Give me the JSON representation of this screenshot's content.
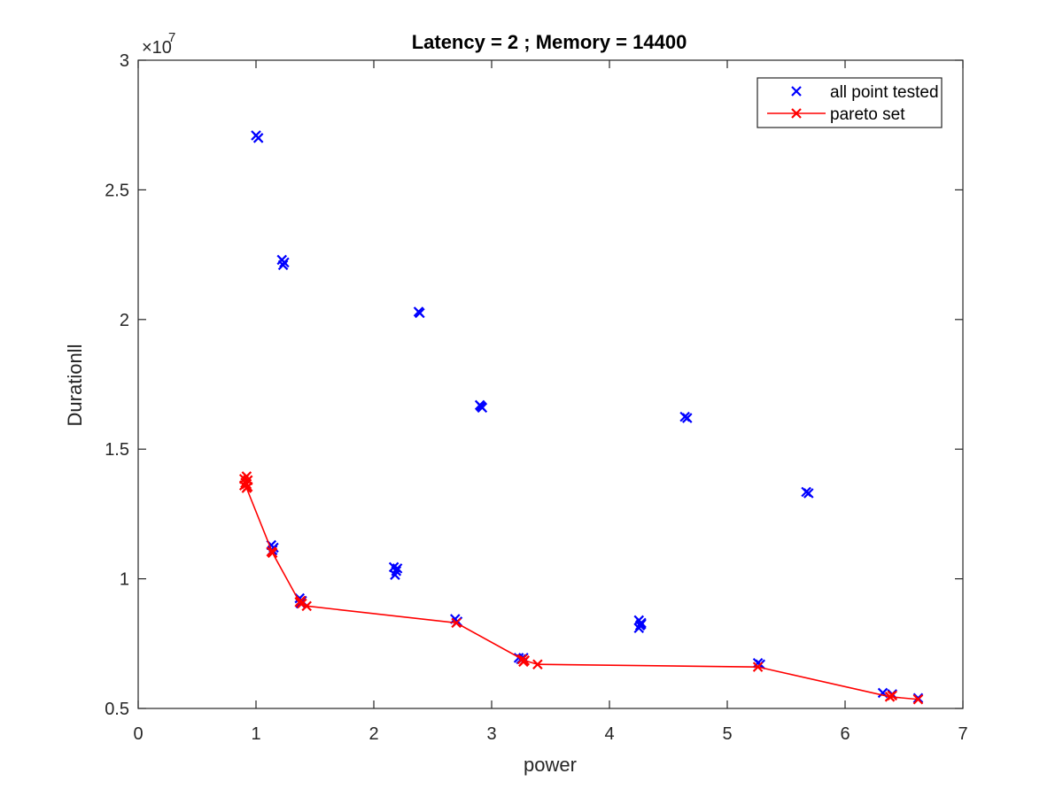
{
  "chart_data": {
    "type": "scatter",
    "title": "Latency = 2 ; Memory = 14400",
    "xlabel": "power",
    "ylabel": "Durationll",
    "xlim": [
      0,
      7
    ],
    "ylim": [
      5000000,
      30000000
    ],
    "x_ticks": [
      0,
      1,
      2,
      3,
      4,
      5,
      6,
      7
    ],
    "x_tick_labels": [
      "0",
      "1",
      "2",
      "3",
      "4",
      "5",
      "6",
      "7"
    ],
    "y_ticks": [
      5000000,
      10000000,
      15000000,
      20000000,
      25000000,
      30000000
    ],
    "y_tick_labels": [
      "0.5",
      "1",
      "1.5",
      "2",
      "2.5",
      "3"
    ],
    "y_exponent_label": "×10",
    "y_exponent_power": "7",
    "grid": false,
    "legend_position": "top-right",
    "series": [
      {
        "name": "all point tested",
        "color": "#0000ff",
        "marker": "x",
        "line": false,
        "points": [
          [
            1.0,
            27100000
          ],
          [
            1.02,
            27000000
          ],
          [
            1.22,
            22300000
          ],
          [
            1.24,
            22200000
          ],
          [
            1.23,
            22100000
          ],
          [
            2.38,
            20300000
          ],
          [
            2.39,
            20250000
          ],
          [
            2.9,
            16700000
          ],
          [
            2.92,
            16600000
          ],
          [
            2.91,
            16650000
          ],
          [
            4.64,
            16250000
          ],
          [
            4.66,
            16200000
          ],
          [
            5.67,
            13350000
          ],
          [
            5.69,
            13300000
          ],
          [
            1.13,
            11300000
          ],
          [
            1.15,
            11200000
          ],
          [
            1.14,
            11100000
          ],
          [
            2.17,
            10450000
          ],
          [
            2.19,
            10300000
          ],
          [
            2.18,
            10150000
          ],
          [
            2.2,
            10400000
          ],
          [
            1.37,
            9250000
          ],
          [
            1.39,
            9150000
          ],
          [
            1.38,
            9050000
          ],
          [
            2.69,
            8450000
          ],
          [
            2.71,
            8350000
          ],
          [
            4.25,
            8400000
          ],
          [
            4.27,
            8300000
          ],
          [
            4.26,
            8200000
          ],
          [
            4.25,
            8100000
          ],
          [
            4.27,
            8250000
          ],
          [
            3.23,
            6950000
          ],
          [
            3.27,
            6950000
          ],
          [
            3.25,
            6900000
          ],
          [
            5.26,
            6750000
          ],
          [
            5.28,
            6700000
          ],
          [
            6.32,
            5600000
          ],
          [
            6.4,
            5550000
          ],
          [
            6.62,
            5400000
          ]
        ]
      },
      {
        "name": "pareto set",
        "color": "#ff0000",
        "marker": "x",
        "line": true,
        "points": [
          [
            0.92,
            13500000
          ],
          [
            1.14,
            11000000
          ],
          [
            1.37,
            9100000
          ],
          [
            1.43,
            8950000
          ],
          [
            2.7,
            8300000
          ],
          [
            3.28,
            6850000
          ],
          [
            3.39,
            6700000
          ],
          [
            5.26,
            6600000
          ],
          [
            6.38,
            5450000
          ],
          [
            6.62,
            5350000
          ]
        ],
        "cluster_points": [
          [
            0.92,
            13950000
          ],
          [
            0.9,
            13850000
          ],
          [
            0.93,
            13800000
          ],
          [
            0.91,
            13700000
          ],
          [
            0.92,
            13650000
          ],
          [
            0.9,
            13600000
          ],
          [
            0.93,
            13550000
          ],
          [
            1.13,
            11050000
          ],
          [
            1.38,
            9150000
          ],
          [
            1.39,
            9050000
          ],
          [
            3.26,
            6900000
          ],
          [
            3.27,
            6800000
          ],
          [
            6.4,
            5500000
          ]
        ]
      }
    ]
  }
}
